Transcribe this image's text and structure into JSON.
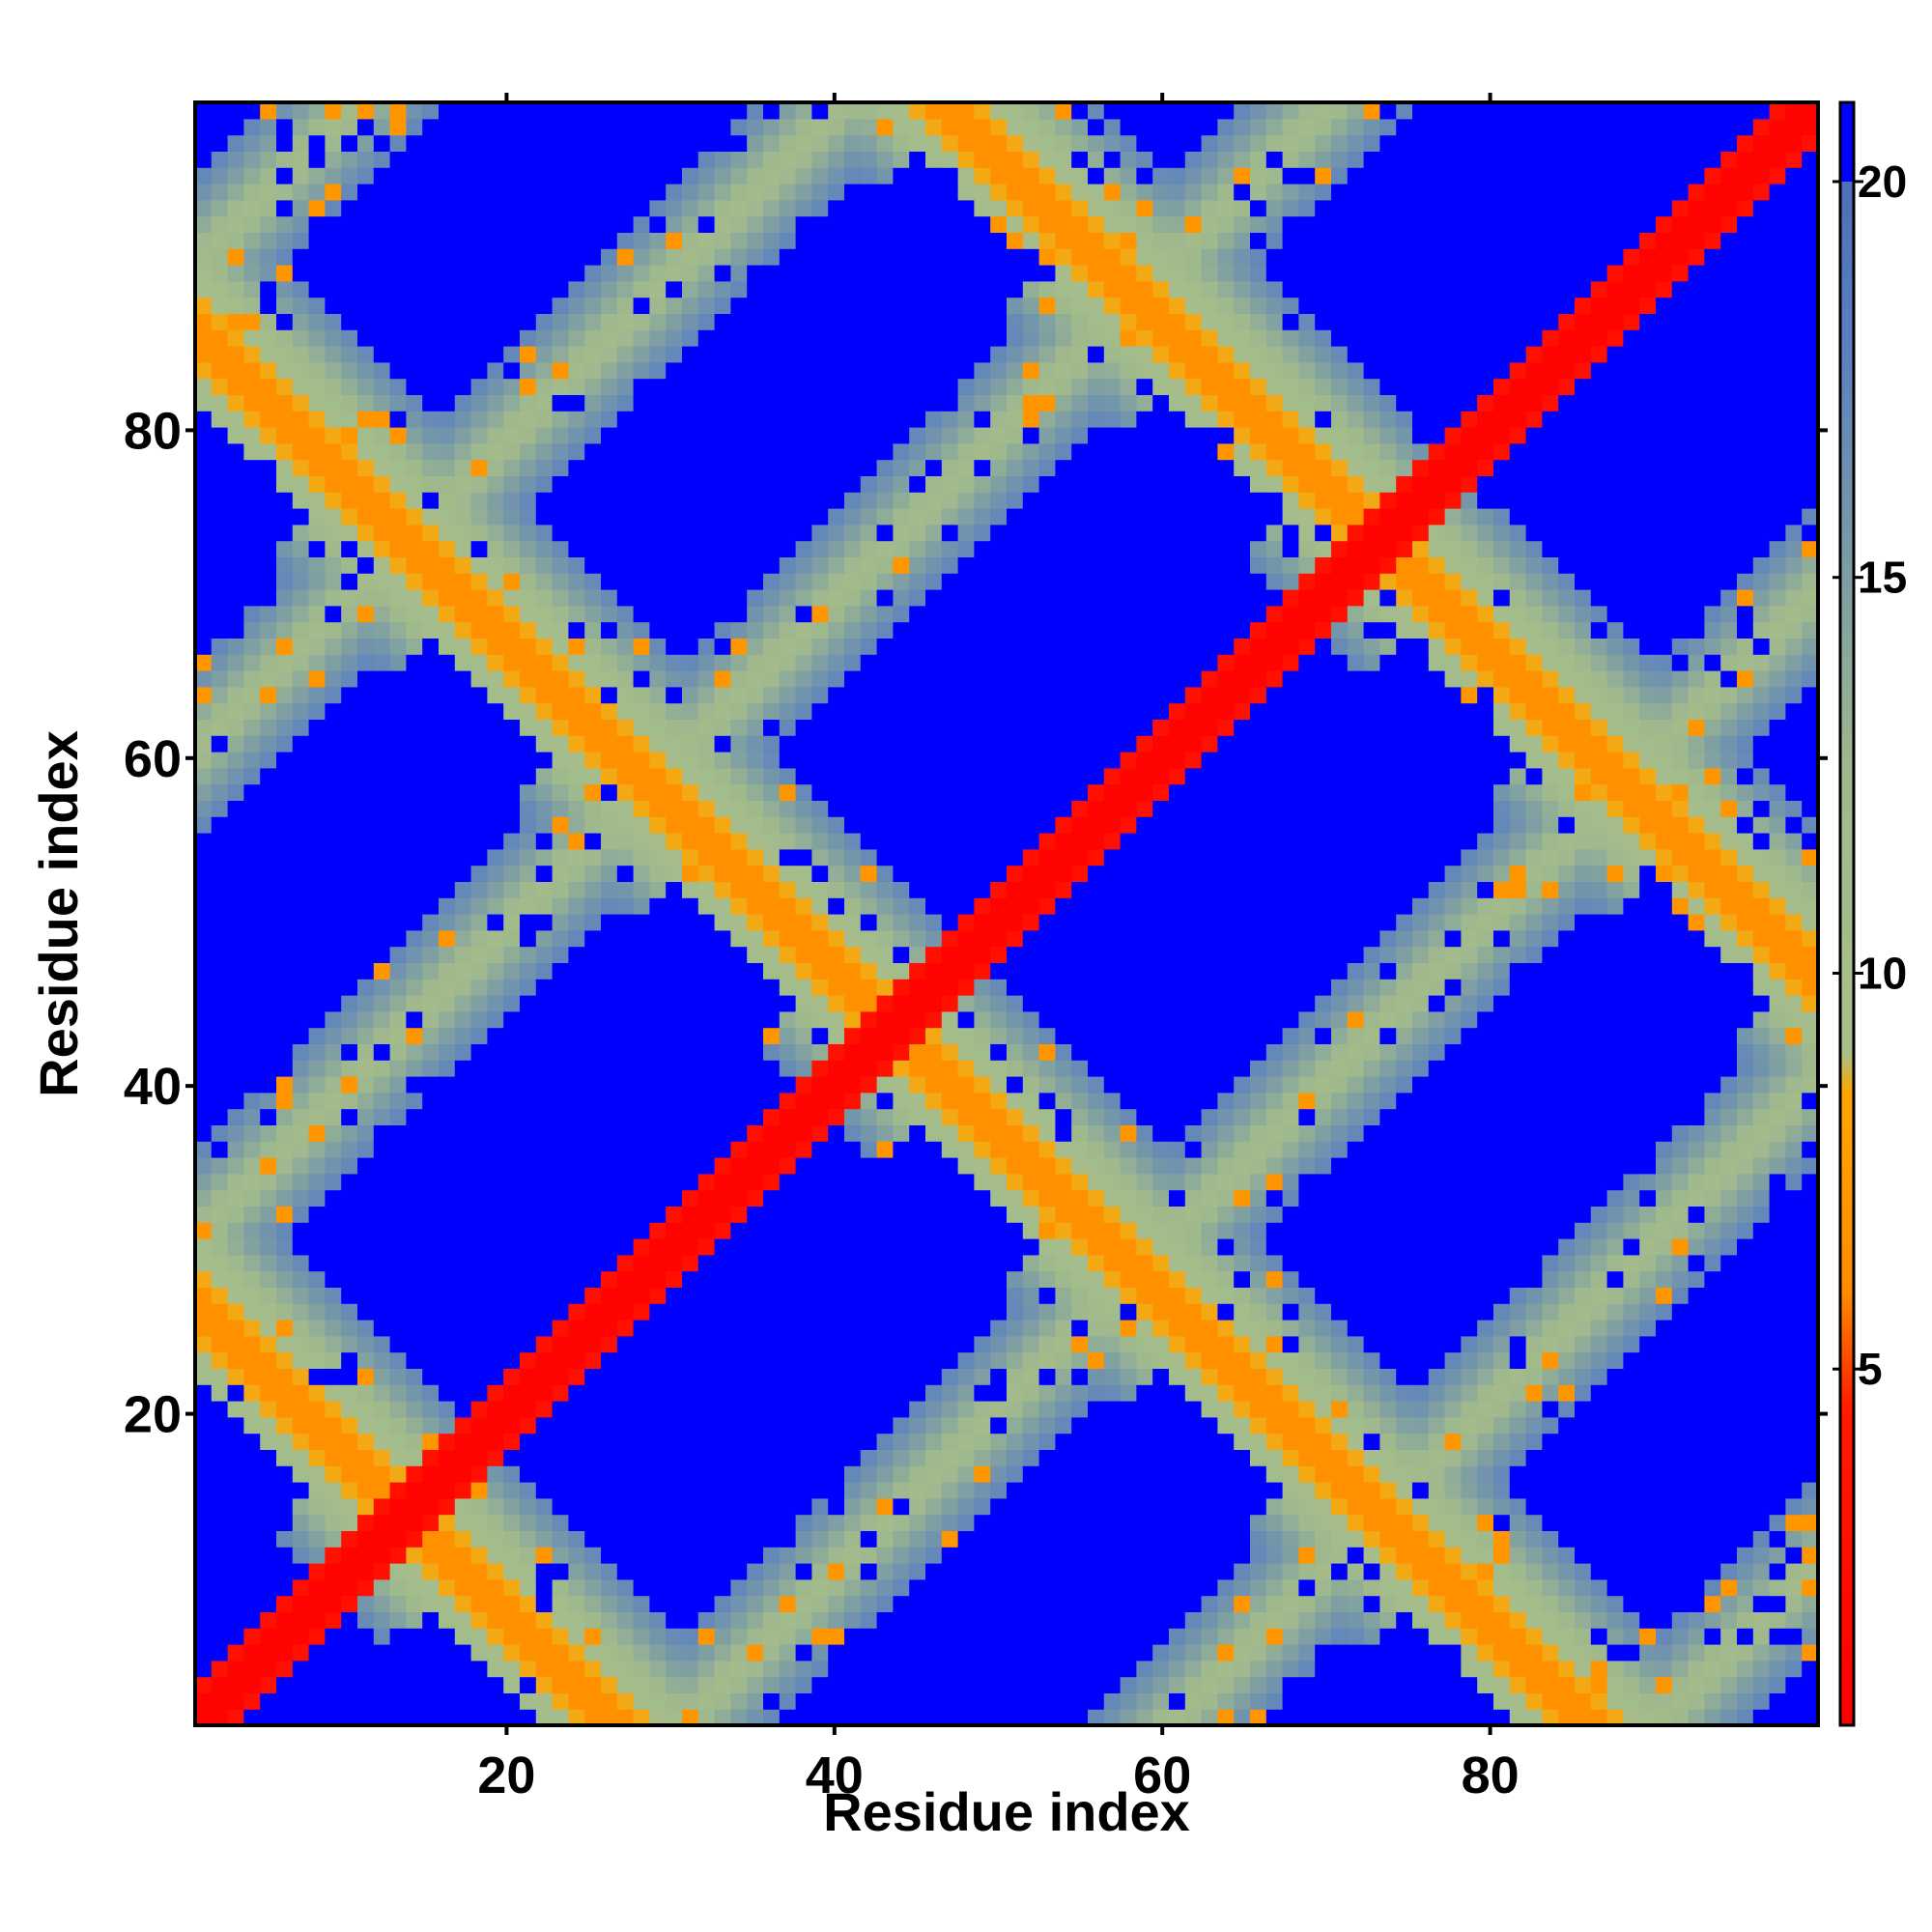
{
  "chart_data": {
    "type": "heatmap",
    "title": "",
    "xlabel": "Residue index",
    "ylabel": "Residue index",
    "n_residues": 100,
    "xlim": [
      1,
      100
    ],
    "ylim": [
      1,
      100
    ],
    "x_ticks": [
      20,
      40,
      60,
      80
    ],
    "y_ticks": [
      20,
      40,
      60,
      80
    ],
    "x_tick_labels": [
      "20",
      "40",
      "60",
      "80"
    ],
    "y_tick_labels": [
      "20",
      "40",
      "60",
      "80"
    ],
    "colorbar": {
      "range": [
        0.5,
        21
      ],
      "ticks": [
        5,
        10,
        15,
        20
      ],
      "tick_labels": [
        "5",
        "10",
        "15",
        "20"
      ],
      "stops": [
        {
          "value": 0.5,
          "color": "#ff0000"
        },
        {
          "value": 4.5,
          "color": "#ff1a00"
        },
        {
          "value": 6.0,
          "color": "#ff8c00"
        },
        {
          "value": 8.5,
          "color": "#ffa500"
        },
        {
          "value": 9.0,
          "color": "#a9c08a"
        },
        {
          "value": 12.5,
          "color": "#a0b98c"
        },
        {
          "value": 15.0,
          "color": "#7d9ea4"
        },
        {
          "value": 18.0,
          "color": "#5b7fc0"
        },
        {
          "value": 20.0,
          "color": "#4d6fb8"
        },
        {
          "value": 20.0,
          "color": "#0000ff"
        },
        {
          "value": 21.0,
          "color": "#0000ff"
        }
      ]
    },
    "description_of_values": "Symmetric residue-residue distance map; diagonal ~1 (red), crossing anti-diagonal bands ~5-8 (orange), periodic shells ~10-18 (green-grey/blue-grey), far pairs >=20 (blue)",
    "structure": {
      "diagonal_value": 1.0,
      "anti_diagonal_offsets": [
        27,
        87,
        147
      ],
      "period": 30,
      "cap_value": 21
    },
    "grid": false,
    "legend": "colorbar-right"
  }
}
